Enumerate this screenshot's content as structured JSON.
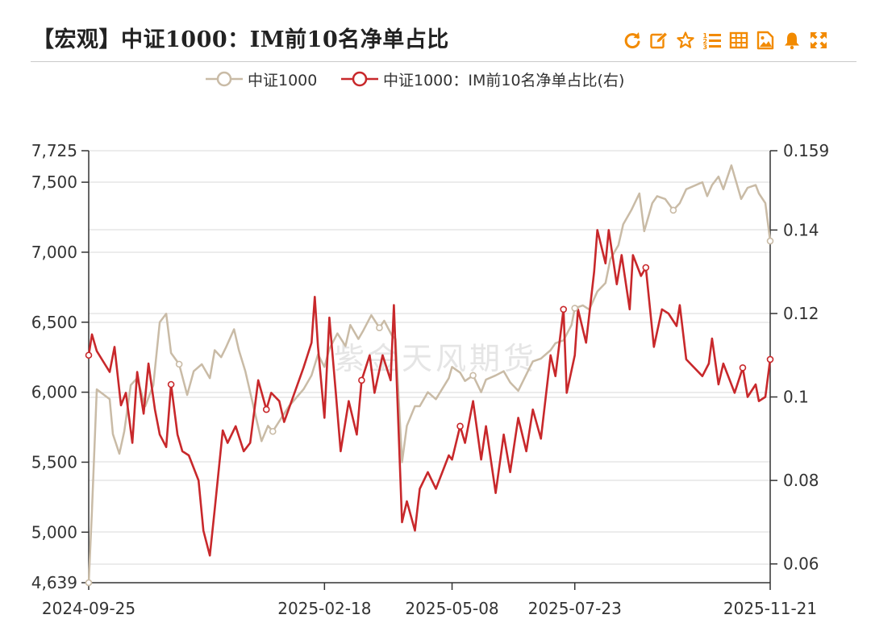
{
  "title": "【宏观】中证1000：IM前10名净单占比",
  "toolbar": [
    {
      "name": "refresh-icon"
    },
    {
      "name": "edit-icon"
    },
    {
      "name": "star-icon"
    },
    {
      "name": "list-icon"
    },
    {
      "name": "table-icon"
    },
    {
      "name": "image-icon"
    },
    {
      "name": "bell-icon"
    },
    {
      "name": "expand-icon"
    }
  ],
  "colors": {
    "accent": "#F28A00",
    "index_line": "#C9BBA6",
    "ratio_line": "#C8282B",
    "grid": "#D9D9D9"
  },
  "legend": {
    "index_label": "中证1000",
    "ratio_label": "中证1000：IM前10名净单占比(右)"
  },
  "watermark": "紫金天风期货",
  "chart_data": {
    "type": "line",
    "x_ticks": [
      "2024-09-25",
      "2025-02-18",
      "2025-05-08",
      "2025-07-23",
      "2025-11-21"
    ],
    "x_range": [
      "2024-09-25",
      "2025-11-21"
    ],
    "left_axis": {
      "ticks": [
        "7,725",
        "7,500",
        "7,000",
        "6,500",
        "6,000",
        "5,500",
        "5,000",
        "4,639"
      ],
      "range": [
        4639,
        7725
      ]
    },
    "right_axis": {
      "ticks": [
        "0.159",
        "0.14",
        "0.12",
        "0.1",
        "0.08",
        "0.06"
      ],
      "range": [
        0.0555,
        0.159
      ]
    },
    "grid": true,
    "legend_position": "top",
    "series": [
      {
        "name": "中证1000",
        "axis": "left",
        "points": [
          [
            "2024-09-25",
            4639
          ],
          [
            "2024-09-27",
            5150
          ],
          [
            "2024-09-30",
            6020
          ],
          [
            "2024-10-08",
            5950
          ],
          [
            "2024-10-10",
            5700
          ],
          [
            "2024-10-14",
            5560
          ],
          [
            "2024-10-17",
            5720
          ],
          [
            "2024-10-21",
            6050
          ],
          [
            "2024-10-25",
            6100
          ],
          [
            "2024-10-30",
            5900
          ],
          [
            "2024-11-04",
            6050
          ],
          [
            "2024-11-08",
            6500
          ],
          [
            "2024-11-12",
            6560
          ],
          [
            "2024-11-15",
            6280
          ],
          [
            "2024-11-20",
            6200
          ],
          [
            "2024-11-25",
            5980
          ],
          [
            "2024-11-29",
            6150
          ],
          [
            "2024-12-04",
            6200
          ],
          [
            "2024-12-09",
            6100
          ],
          [
            "2024-12-12",
            6300
          ],
          [
            "2024-12-16",
            6250
          ],
          [
            "2024-12-19",
            6320
          ],
          [
            "2024-12-24",
            6450
          ],
          [
            "2024-12-27",
            6300
          ],
          [
            "2024-12-31",
            6150
          ],
          [
            "2025-01-06",
            5850
          ],
          [
            "2025-01-10",
            5650
          ],
          [
            "2025-01-14",
            5760
          ],
          [
            "2025-01-17",
            5720
          ],
          [
            "2025-01-22",
            5810
          ],
          [
            "2025-01-27",
            5900
          ],
          [
            "2025-02-05",
            6020
          ],
          [
            "2025-02-10",
            6120
          ],
          [
            "2025-02-14",
            6270
          ],
          [
            "2025-02-18",
            6180
          ],
          [
            "2025-02-21",
            6310
          ],
          [
            "2025-02-26",
            6420
          ],
          [
            "2025-03-03",
            6330
          ],
          [
            "2025-03-06",
            6480
          ],
          [
            "2025-03-11",
            6380
          ],
          [
            "2025-03-14",
            6440
          ],
          [
            "2025-03-19",
            6550
          ],
          [
            "2025-03-24",
            6460
          ],
          [
            "2025-03-27",
            6510
          ],
          [
            "2025-04-01",
            6400
          ],
          [
            "2025-04-03",
            6380
          ],
          [
            "2025-04-07",
            5500
          ],
          [
            "2025-04-10",
            5760
          ],
          [
            "2025-04-15",
            5900
          ],
          [
            "2025-04-18",
            5900
          ],
          [
            "2025-04-23",
            6000
          ],
          [
            "2025-04-28",
            5950
          ],
          [
            "2025-05-06",
            6100
          ],
          [
            "2025-05-08",
            6180
          ],
          [
            "2025-05-13",
            6140
          ],
          [
            "2025-05-16",
            6080
          ],
          [
            "2025-05-21",
            6120
          ],
          [
            "2025-05-26",
            6000
          ],
          [
            "2025-05-29",
            6090
          ],
          [
            "2025-06-04",
            6120
          ],
          [
            "2025-06-09",
            6150
          ],
          [
            "2025-06-13",
            6070
          ],
          [
            "2025-06-18",
            6010
          ],
          [
            "2025-06-24",
            6150
          ],
          [
            "2025-06-27",
            6220
          ],
          [
            "2025-07-02",
            6240
          ],
          [
            "2025-07-08",
            6300
          ],
          [
            "2025-07-11",
            6350
          ],
          [
            "2025-07-16",
            6370
          ],
          [
            "2025-07-21",
            6480
          ],
          [
            "2025-07-23",
            6600
          ],
          [
            "2025-07-28",
            6620
          ],
          [
            "2025-08-01",
            6590
          ],
          [
            "2025-08-06",
            6720
          ],
          [
            "2025-08-11",
            6780
          ],
          [
            "2025-08-14",
            6950
          ],
          [
            "2025-08-19",
            7050
          ],
          [
            "2025-08-22",
            7200
          ],
          [
            "2025-08-27",
            7300
          ],
          [
            "2025-09-01",
            7420
          ],
          [
            "2025-09-04",
            7150
          ],
          [
            "2025-09-09",
            7350
          ],
          [
            "2025-09-12",
            7400
          ],
          [
            "2025-09-17",
            7380
          ],
          [
            "2025-09-22",
            7300
          ],
          [
            "2025-09-26",
            7350
          ],
          [
            "2025-09-30",
            7450
          ],
          [
            "2025-10-10",
            7500
          ],
          [
            "2025-10-13",
            7400
          ],
          [
            "2025-10-16",
            7480
          ],
          [
            "2025-10-20",
            7540
          ],
          [
            "2025-10-23",
            7450
          ],
          [
            "2025-10-28",
            7620
          ],
          [
            "2025-11-03",
            7380
          ],
          [
            "2025-11-07",
            7460
          ],
          [
            "2025-11-12",
            7480
          ],
          [
            "2025-11-14",
            7420
          ],
          [
            "2025-11-18",
            7350
          ],
          [
            "2025-11-21",
            7080
          ]
        ]
      },
      {
        "name": "中证1000：IM前10名净单占比",
        "axis": "right",
        "points": [
          [
            "2024-09-25",
            0.11
          ],
          [
            "2024-09-27",
            0.115
          ],
          [
            "2024-09-30",
            0.111
          ],
          [
            "2024-10-08",
            0.106
          ],
          [
            "2024-10-11",
            0.112
          ],
          [
            "2024-10-15",
            0.098
          ],
          [
            "2024-10-18",
            0.101
          ],
          [
            "2024-10-22",
            0.089
          ],
          [
            "2024-10-25",
            0.106
          ],
          [
            "2024-10-29",
            0.096
          ],
          [
            "2024-11-01",
            0.108
          ],
          [
            "2024-11-05",
            0.097
          ],
          [
            "2024-11-08",
            0.091
          ],
          [
            "2024-11-12",
            0.088
          ],
          [
            "2024-11-15",
            0.103
          ],
          [
            "2024-11-19",
            0.091
          ],
          [
            "2024-11-22",
            0.087
          ],
          [
            "2024-11-26",
            0.086
          ],
          [
            "2024-12-02",
            0.08
          ],
          [
            "2024-12-05",
            0.068
          ],
          [
            "2024-12-09",
            0.062
          ],
          [
            "2024-12-12",
            0.073
          ],
          [
            "2024-12-17",
            0.092
          ],
          [
            "2024-12-20",
            0.089
          ],
          [
            "2024-12-25",
            0.093
          ],
          [
            "2024-12-30",
            0.087
          ],
          [
            "2025-01-03",
            0.089
          ],
          [
            "2025-01-08",
            0.104
          ],
          [
            "2025-01-13",
            0.097
          ],
          [
            "2025-01-16",
            0.101
          ],
          [
            "2025-01-21",
            0.099
          ],
          [
            "2025-01-24",
            0.094
          ],
          [
            "2025-02-05",
            0.107
          ],
          [
            "2025-02-10",
            0.113
          ],
          [
            "2025-02-12",
            0.124
          ],
          [
            "2025-02-14",
            0.112
          ],
          [
            "2025-02-18",
            0.095
          ],
          [
            "2025-02-21",
            0.119
          ],
          [
            "2025-02-25",
            0.101
          ],
          [
            "2025-02-28",
            0.087
          ],
          [
            "2025-03-05",
            0.099
          ],
          [
            "2025-03-10",
            0.091
          ],
          [
            "2025-03-13",
            0.104
          ],
          [
            "2025-03-18",
            0.11
          ],
          [
            "2025-03-21",
            0.101
          ],
          [
            "2025-03-26",
            0.11
          ],
          [
            "2025-03-31",
            0.104
          ],
          [
            "2025-04-02",
            0.122
          ],
          [
            "2025-04-07",
            0.07
          ],
          [
            "2025-04-10",
            0.075
          ],
          [
            "2025-04-15",
            0.068
          ],
          [
            "2025-04-18",
            0.078
          ],
          [
            "2025-04-23",
            0.082
          ],
          [
            "2025-04-28",
            0.078
          ],
          [
            "2025-05-06",
            0.086
          ],
          [
            "2025-05-08",
            0.085
          ],
          [
            "2025-05-13",
            0.093
          ],
          [
            "2025-05-16",
            0.089
          ],
          [
            "2025-05-21",
            0.099
          ],
          [
            "2025-05-26",
            0.085
          ],
          [
            "2025-05-29",
            0.093
          ],
          [
            "2025-06-04",
            0.077
          ],
          [
            "2025-06-09",
            0.091
          ],
          [
            "2025-06-13",
            0.082
          ],
          [
            "2025-06-18",
            0.095
          ],
          [
            "2025-06-23",
            0.087
          ],
          [
            "2025-06-27",
            0.097
          ],
          [
            "2025-07-02",
            0.09
          ],
          [
            "2025-07-08",
            0.11
          ],
          [
            "2025-07-11",
            0.105
          ],
          [
            "2025-07-16",
            0.121
          ],
          [
            "2025-07-18",
            0.101
          ],
          [
            "2025-07-23",
            0.11
          ],
          [
            "2025-07-25",
            0.121
          ],
          [
            "2025-07-30",
            0.113
          ],
          [
            "2025-08-04",
            0.13
          ],
          [
            "2025-08-06",
            0.14
          ],
          [
            "2025-08-11",
            0.132
          ],
          [
            "2025-08-13",
            0.14
          ],
          [
            "2025-08-18",
            0.127
          ],
          [
            "2025-08-21",
            0.134
          ],
          [
            "2025-08-26",
            0.121
          ],
          [
            "2025-08-28",
            0.134
          ],
          [
            "2025-09-02",
            0.129
          ],
          [
            "2025-09-05",
            0.131
          ],
          [
            "2025-09-10",
            0.112
          ],
          [
            "2025-09-15",
            0.121
          ],
          [
            "2025-09-19",
            0.12
          ],
          [
            "2025-09-24",
            0.117
          ],
          [
            "2025-09-26",
            0.122
          ],
          [
            "2025-09-30",
            0.109
          ],
          [
            "2025-10-10",
            0.105
          ],
          [
            "2025-10-14",
            0.108
          ],
          [
            "2025-10-16",
            0.114
          ],
          [
            "2025-10-20",
            0.103
          ],
          [
            "2025-10-23",
            0.108
          ],
          [
            "2025-10-27",
            0.104
          ],
          [
            "2025-10-30",
            0.101
          ],
          [
            "2025-11-04",
            0.107
          ],
          [
            "2025-11-07",
            0.1
          ],
          [
            "2025-11-12",
            0.103
          ],
          [
            "2025-11-14",
            0.099
          ],
          [
            "2025-11-18",
            0.1
          ],
          [
            "2025-11-21",
            0.109
          ]
        ]
      }
    ]
  }
}
